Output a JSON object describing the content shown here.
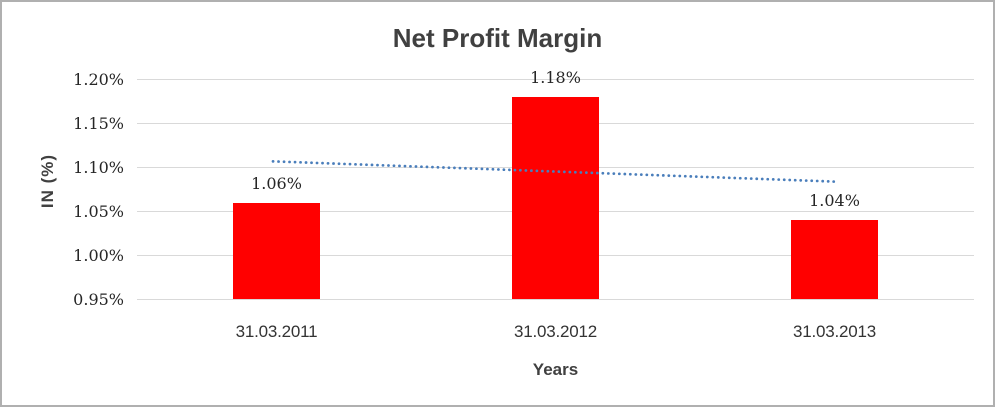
{
  "chart_data": {
    "type": "bar",
    "title": "Net Profit Margin",
    "xlabel": "Years",
    "ylabel": "IN (%)",
    "categories": [
      "31.03.2011",
      "31.03.2012",
      "31.03.2013"
    ],
    "values": [
      1.06,
      1.18,
      1.04
    ],
    "data_labels": [
      "1.06%",
      "1.18%",
      "1.04%"
    ],
    "y_ticks": [
      {
        "label": "1.20%",
        "value": 1.2
      },
      {
        "label": "1.15%",
        "value": 1.15
      },
      {
        "label": "1.10%",
        "value": 1.1
      },
      {
        "label": "1.05%",
        "value": 1.05
      },
      {
        "label": "1.00%",
        "value": 1.0
      },
      {
        "label": "0.95%",
        "value": 0.95
      }
    ],
    "ylim": [
      0.95,
      1.2
    ],
    "grid": "horizontal",
    "legend": "none",
    "bar_color": "#FF0000",
    "gridline_color": "#D9D9D9",
    "trendline": {
      "type": "linear",
      "style": "dotted",
      "color": "#4A7EBB",
      "start_value": 1.107,
      "end_value": 1.084
    }
  }
}
